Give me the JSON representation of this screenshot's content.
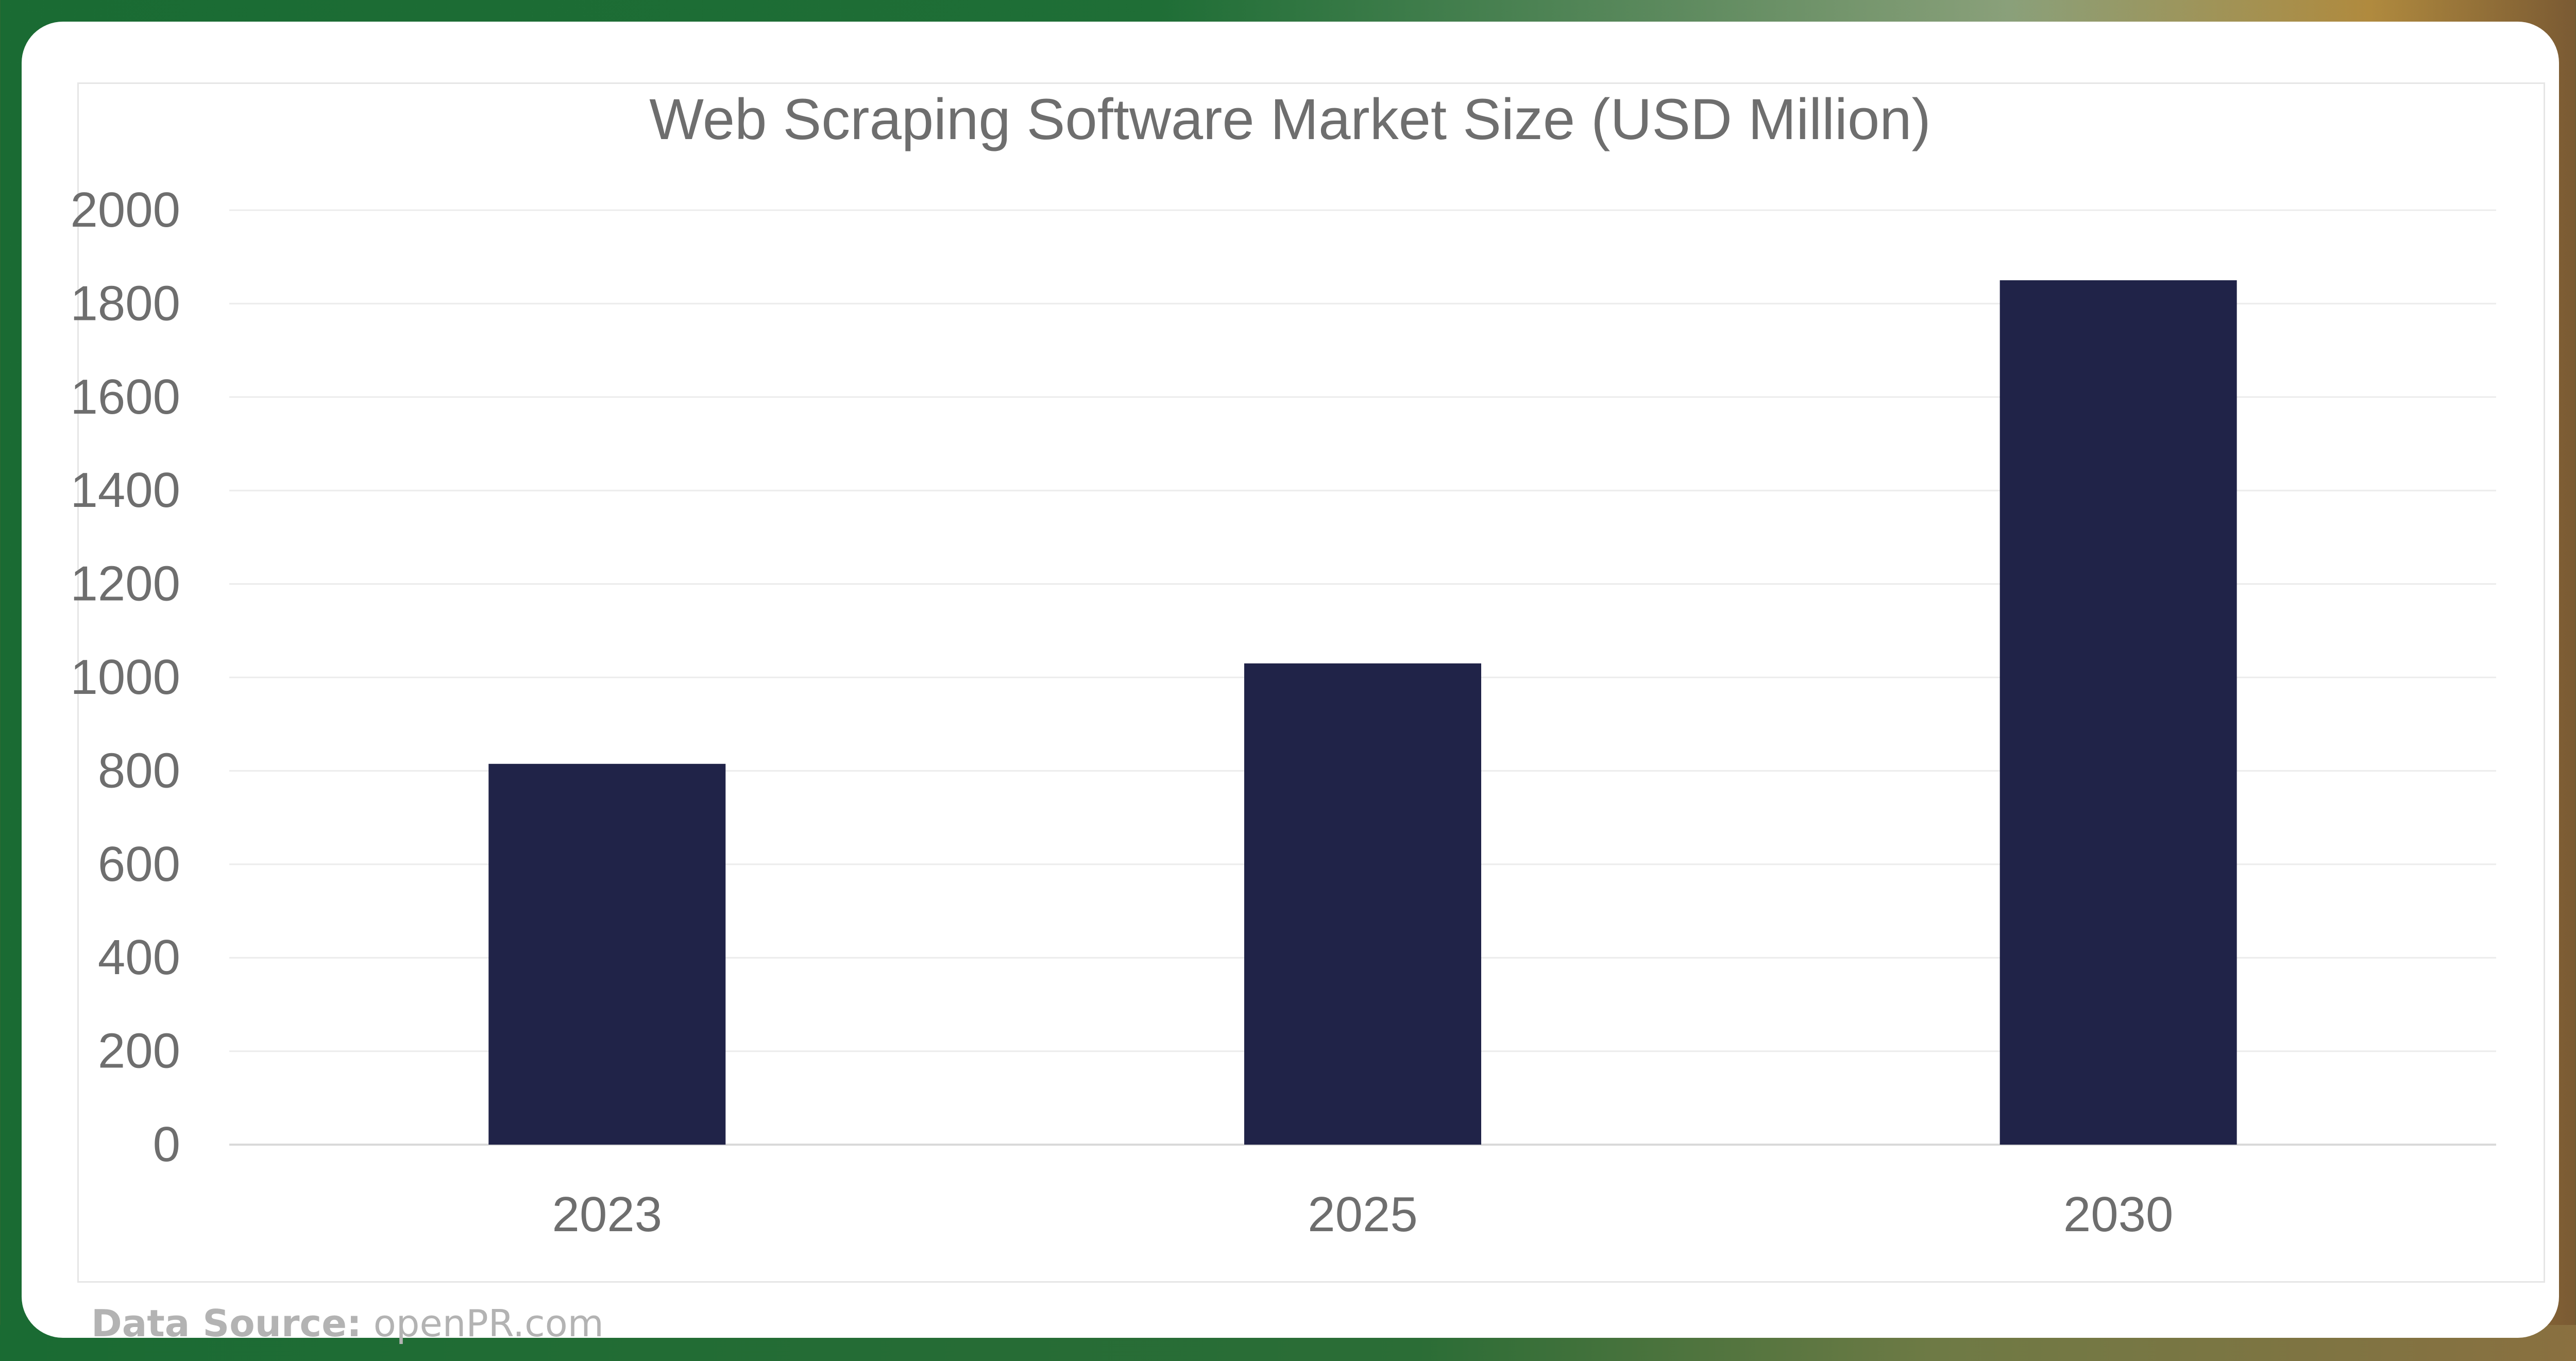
{
  "chart_data": {
    "type": "bar",
    "title": "Web Scraping Software Market Size (USD Million)",
    "xlabel": "",
    "ylabel": "",
    "categories": [
      "2023",
      "2025",
      "2030"
    ],
    "values": [
      815,
      1030,
      1850
    ],
    "ylim": [
      0,
      2000
    ],
    "yticks": [
      "0",
      "200",
      "400",
      "600",
      "800",
      "1000",
      "1200",
      "1400",
      "1600",
      "1800",
      "2000"
    ],
    "grid": true,
    "legend": "none",
    "bar_color": "#202348"
  },
  "footer": {
    "source_label": "Data Source:",
    "source_value": "openPR.com"
  }
}
